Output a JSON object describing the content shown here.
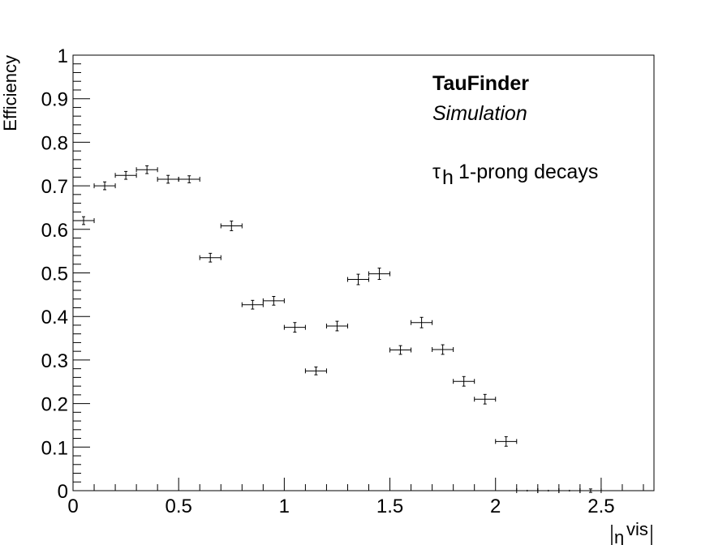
{
  "chart_data": {
    "type": "scatter",
    "title": "",
    "xlabel_symbol": "η",
    "xlabel_superscript": "vis",
    "ylabel": "Efficiency",
    "xlim": [
      0,
      2.75
    ],
    "ylim": [
      0,
      1
    ],
    "x_ticks": [
      "0",
      "0.5",
      "1",
      "1.5",
      "2",
      "2.5"
    ],
    "y_ticks": [
      "0",
      "0.1",
      "0.2",
      "0.3",
      "0.4",
      "0.5",
      "0.6",
      "0.7",
      "0.8",
      "0.9",
      "1"
    ],
    "annotations": {
      "line1": "TauFinder",
      "line2": "Simulation",
      "line3_symbol": "τ",
      "line3_subscript": "h",
      "line3_text": "1-prong decays"
    },
    "grid": false,
    "x_bin_halfwidth": 0.05,
    "x": [
      0.05,
      0.15,
      0.25,
      0.35,
      0.45,
      0.55,
      0.65,
      0.75,
      0.85,
      0.95,
      1.05,
      1.15,
      1.25,
      1.35,
      1.45,
      1.55,
      1.65,
      1.75,
      1.85,
      1.95,
      2.05,
      2.15,
      2.25,
      2.35,
      2.45
    ],
    "y": [
      0.62,
      0.7,
      0.724,
      0.737,
      0.715,
      0.715,
      0.535,
      0.608,
      0.427,
      0.436,
      0.375,
      0.275,
      0.378,
      0.485,
      0.498,
      0.323,
      0.386,
      0.324,
      0.251,
      0.21,
      0.113,
      0.0,
      0.0,
      0.0,
      0.0
    ],
    "y_err": [
      0.009,
      0.009,
      0.009,
      0.009,
      0.009,
      0.008,
      0.01,
      0.011,
      0.01,
      0.01,
      0.011,
      0.009,
      0.011,
      0.012,
      0.013,
      0.01,
      0.012,
      0.011,
      0.011,
      0.011,
      0.011,
      0.002,
      0.002,
      0.002,
      0.004
    ]
  }
}
